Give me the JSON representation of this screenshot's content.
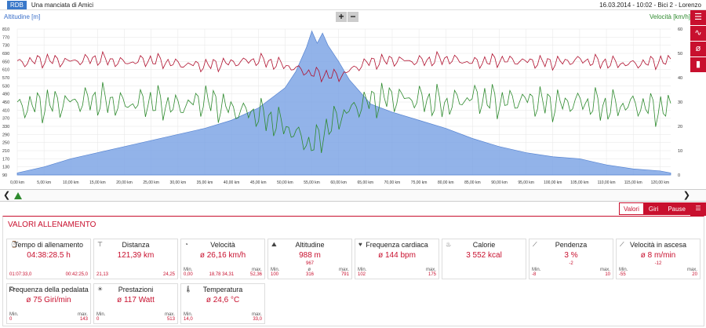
{
  "header": {
    "logo": "RDB",
    "title": "Una manciata di Amici",
    "session": "16.03.2014  -  10:02  -  Bici 2  -  Lorenzo"
  },
  "chart": {
    "left_axis_label": "Altitudine [m]",
    "right_axis_label": "Velocità [km/h]",
    "zoom_in": "+",
    "zoom_out": "−"
  },
  "side_icons": [
    "list-icon",
    "line-chart-icon",
    "no-symbol-icon",
    "bar-chart-icon"
  ],
  "tabs": {
    "laps_label": "Valori",
    "laps2_label": "Giri",
    "pause_label": "Pause"
  },
  "panel": {
    "title": "VALORI ALLENAMENTO"
  },
  "cards": [
    {
      "title": "Tempo di allenamento",
      "value": "04:38:28.5 h",
      "sub": "",
      "l1": "",
      "l2": "",
      "l3": "",
      "n1": "01:07:33,0",
      "n2": "",
      "n3": "00:42:25,0"
    },
    {
      "title": "Distanza",
      "value": "121,39 km",
      "sub": "",
      "l1": "",
      "l2": "",
      "l3": "",
      "n1": "21,13",
      "n2": "",
      "n3": "24,25"
    },
    {
      "title": "Velocità",
      "value": "ø 26,16 km/h",
      "sub": "",
      "l1": "Min.",
      "l2": "",
      "l3": "max.",
      "n1": "0,00",
      "n2": "18,78  34,31",
      "n3": "52,36"
    },
    {
      "title": "Altitudine",
      "value": "988 m",
      "sub": "967",
      "l1": "Min.",
      "l2": "ø",
      "l3": "max.",
      "n1": "100",
      "n2": "316",
      "n3": "791"
    },
    {
      "title": "Frequenza cardiaca",
      "value": "ø 144 bpm",
      "sub": "",
      "l1": "Min.",
      "l2": "",
      "l3": "max.",
      "n1": "102",
      "n2": "",
      "n3": "175"
    },
    {
      "title": "Calorie",
      "value": "3 552 kcal",
      "sub": "",
      "l1": "",
      "l2": "",
      "l3": "",
      "n1": "",
      "n2": "",
      "n3": ""
    },
    {
      "title": "Pendenza",
      "value": "3 %",
      "sub": "-2",
      "l1": "Min.",
      "l2": "",
      "l3": "max.",
      "n1": "-8",
      "n2": "",
      "n3": "10"
    },
    {
      "title": "Velocità in ascesa",
      "value": "ø 8 m/min",
      "sub": "-12",
      "l1": "Min.",
      "l2": "",
      "l3": "max.",
      "n1": "-55",
      "n2": "",
      "n3": "20"
    },
    {
      "title": "Frequenza della pedalata",
      "value": "ø 75 Giri/min",
      "sub": "",
      "l1": "Min.",
      "l2": "",
      "l3": "max.",
      "n1": "0",
      "n2": "",
      "n3": "143"
    },
    {
      "title": "Prestazioni",
      "value": "ø 117 Watt",
      "sub": "",
      "l1": "Min.",
      "l2": "",
      "l3": "max.",
      "n1": "0",
      "n2": "",
      "n3": "513"
    },
    {
      "title": "Temperatura",
      "value": "ø 24,6 °C",
      "sub": "",
      "l1": "Min.",
      "l2": "",
      "l3": "max.",
      "n1": "14,0",
      "n2": "",
      "n3": "33,0"
    }
  ],
  "chart_data": {
    "type": "line",
    "x_ticks": [
      "0,00 km",
      "5,00 km",
      "10,00 km",
      "15,00 km",
      "20,00 km",
      "25,00 km",
      "30,00 km",
      "35,00 km",
      "40,00 km",
      "45,00 km",
      "50,00 km",
      "55,00 km",
      "60,00 km",
      "65,00 km",
      "70,00 km",
      "75,00 km",
      "80,00 km",
      "85,00 km",
      "90,00 km",
      "95,00 km",
      "100,00 km",
      "105,00 km",
      "110,00 km",
      "115,00 km",
      "120,00 km"
    ],
    "y_left_ticks": [
      "810",
      "770",
      "730",
      "690",
      "650",
      "610",
      "570",
      "530",
      "490",
      "450",
      "410",
      "370",
      "330",
      "290",
      "250",
      "210",
      "170",
      "130",
      "90"
    ],
    "y_right_ticks": [
      "60",
      "50",
      "40",
      "30",
      "20",
      "10",
      "0"
    ],
    "xlim": [
      0,
      122
    ],
    "ylim_left": [
      90,
      810
    ],
    "ylim_right": [
      0,
      60
    ],
    "colors": {
      "altitude": "#7fa6e6",
      "altitude_line": "#3a6fc9",
      "speed": "#2e8a2e",
      "heart_rate": "#b0102e"
    },
    "altitude": {
      "x": [
        0,
        5,
        10,
        15,
        20,
        25,
        30,
        35,
        40,
        45,
        48,
        50,
        52,
        54,
        55,
        56,
        57,
        58,
        60,
        62,
        64,
        66,
        70,
        75,
        80,
        85,
        90,
        95,
        100,
        105,
        110,
        115,
        120,
        122
      ],
      "y": [
        100,
        130,
        170,
        200,
        230,
        260,
        290,
        320,
        360,
        420,
        480,
        520,
        600,
        720,
        800,
        740,
        790,
        730,
        650,
        560,
        500,
        440,
        400,
        360,
        320,
        270,
        230,
        200,
        180,
        170,
        140,
        120,
        110,
        100
      ]
    },
    "speed": {
      "x": [
        0,
        5,
        10,
        15,
        20,
        25,
        30,
        35,
        40,
        45,
        50,
        55,
        60,
        65,
        70,
        75,
        80,
        85,
        90,
        95,
        100,
        105,
        110,
        115,
        120
      ],
      "y": [
        28,
        29,
        30,
        31,
        29,
        30,
        28,
        31,
        27,
        25,
        20,
        12,
        24,
        30,
        32,
        31,
        29,
        32,
        30,
        31,
        29,
        30,
        28,
        29,
        27
      ]
    },
    "heart_rate": {
      "x": [
        0,
        5,
        10,
        15,
        20,
        25,
        30,
        35,
        40,
        45,
        50,
        55,
        60,
        65,
        70,
        75,
        80,
        85,
        90,
        95,
        100,
        105,
        110,
        115,
        120
      ],
      "y": [
        150,
        152,
        151,
        153,
        150,
        152,
        149,
        148,
        150,
        152,
        148,
        142,
        140,
        150,
        152,
        151,
        153,
        150,
        152,
        151,
        150,
        152,
        150,
        149,
        151
      ]
    }
  }
}
